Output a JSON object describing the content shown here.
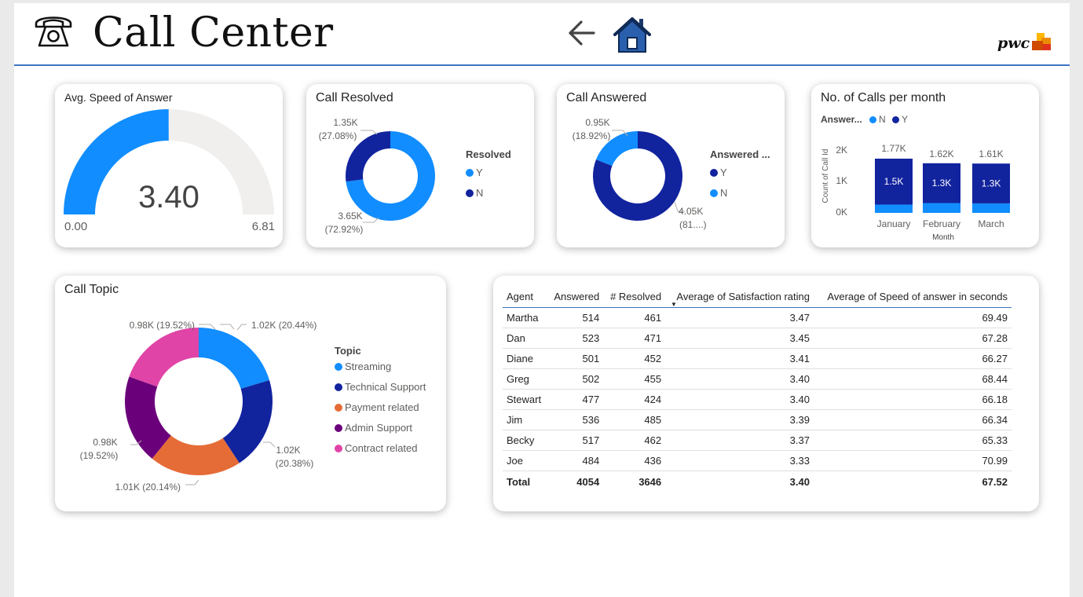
{
  "header": {
    "title": "Call Center",
    "brand": "pwc",
    "phone_icon": "phone-icon",
    "back_icon": "arrow-left-icon",
    "home_icon": "home-icon"
  },
  "colors": {
    "light_blue": "#118dff",
    "dark_blue": "#12239e",
    "orange": "#e66c37",
    "purple": "#6b007b",
    "pink": "#e044a7",
    "gauge_bg": "#f0efee",
    "accent_line": "#3a74c2"
  },
  "gauge": {
    "title": "Avg. Speed of Answer",
    "value_label": "3.40",
    "min_label": "0.00",
    "max_label": "6.81"
  },
  "resolved": {
    "title": "Call Resolved",
    "legend_title": "Resolved",
    "legend": [
      "Y",
      "N"
    ],
    "label_n_value": "1.35K",
    "label_n_pct": "(27.08%)",
    "label_y_value": "3.65K",
    "label_y_pct": "(72.92%)"
  },
  "answered": {
    "title": "Call Answered",
    "legend_title": "Answered ...",
    "legend": [
      "Y",
      "N"
    ],
    "label_n_value": "0.95K",
    "label_n_pct": "(18.92%)",
    "label_y_value": "4.05K",
    "label_y_pct": "(81....)"
  },
  "monthly": {
    "title": "No. of Calls per month",
    "legend_title": "Answer...",
    "legend": [
      "N",
      "Y"
    ],
    "ylabel": "Count of Call Id",
    "xlabel": "Month",
    "yticks": [
      "2K",
      "1K",
      "0K"
    ],
    "months": [
      "January",
      "February",
      "March"
    ],
    "totals": [
      "1.77K",
      "1.62K",
      "1.61K"
    ],
    "inner_labels": [
      "1.5K",
      "1.3K",
      "1.3K"
    ]
  },
  "topic": {
    "title": "Call Topic",
    "legend_title": "Topic",
    "legend": [
      "Streaming",
      "Technical Support",
      "Payment related",
      "Admin Support",
      "Contract related"
    ],
    "labels": [
      "1.02K (20.44%)",
      "1.02K",
      "(20.38%)",
      "1.01K (20.14%)",
      "0.98K",
      "(19.52%)",
      "0.98K (19.52%)"
    ]
  },
  "table": {
    "headers": [
      "Agent",
      "Answered",
      "# Resolved",
      "Average of Satisfaction rating",
      "Average of Speed of answer in seconds"
    ],
    "rows": [
      [
        "Martha",
        "514",
        "461",
        "3.47",
        "69.49"
      ],
      [
        "Dan",
        "523",
        "471",
        "3.45",
        "67.28"
      ],
      [
        "Diane",
        "501",
        "452",
        "3.41",
        "66.27"
      ],
      [
        "Greg",
        "502",
        "455",
        "3.40",
        "68.44"
      ],
      [
        "Stewart",
        "477",
        "424",
        "3.40",
        "66.18"
      ],
      [
        "Jim",
        "536",
        "485",
        "3.39",
        "66.34"
      ],
      [
        "Becky",
        "517",
        "462",
        "3.37",
        "65.33"
      ],
      [
        "Joe",
        "484",
        "436",
        "3.33",
        "70.99"
      ]
    ],
    "total": [
      "Total",
      "4054",
      "3646",
      "3.40",
      "67.52"
    ]
  },
  "chart_data": [
    {
      "type": "gauge",
      "title": "Avg. Speed of Answer",
      "value": 3.4,
      "min": 0.0,
      "max": 6.81
    },
    {
      "type": "pie",
      "title": "Call Resolved",
      "legend_title": "Resolved",
      "categories": [
        "Y",
        "N"
      ],
      "values": [
        3.65,
        1.35
      ],
      "units": "K",
      "percentages": [
        72.92,
        27.08
      ]
    },
    {
      "type": "pie",
      "title": "Call Answered",
      "legend_title": "Answered ...",
      "categories": [
        "Y",
        "N"
      ],
      "values": [
        4.05,
        0.95
      ],
      "units": "K",
      "percentages": [
        81.08,
        18.92
      ]
    },
    {
      "type": "bar",
      "stacked": true,
      "title": "No. of Calls per month",
      "categories": [
        "January",
        "February",
        "March"
      ],
      "series": [
        {
          "name": "Y",
          "values": [
            1.5,
            1.3,
            1.3
          ]
        },
        {
          "name": "N",
          "values": [
            0.27,
            0.32,
            0.31
          ]
        }
      ],
      "totals": [
        1.77,
        1.62,
        1.61
      ],
      "xlabel": "Month",
      "ylabel": "Count of Call Id",
      "ylim": [
        0,
        2
      ],
      "units": "K"
    },
    {
      "type": "pie",
      "title": "Call Topic",
      "legend_title": "Topic",
      "categories": [
        "Streaming",
        "Technical Support",
        "Payment related",
        "Admin Support",
        "Contract related"
      ],
      "values": [
        1.02,
        1.02,
        1.01,
        0.98,
        0.98
      ],
      "units": "K",
      "percentages": [
        20.44,
        20.38,
        20.14,
        19.52,
        19.52
      ]
    },
    {
      "type": "table",
      "columns": [
        "Agent",
        "Answered",
        "# Resolved",
        "Average of Satisfaction rating",
        "Average of Speed of answer in seconds"
      ],
      "rows": [
        [
          "Martha",
          514,
          461,
          3.47,
          69.49
        ],
        [
          "Dan",
          523,
          471,
          3.45,
          67.28
        ],
        [
          "Diane",
          501,
          452,
          3.41,
          66.27
        ],
        [
          "Greg",
          502,
          455,
          3.4,
          68.44
        ],
        [
          "Stewart",
          477,
          424,
          3.4,
          66.18
        ],
        [
          "Jim",
          536,
          485,
          3.39,
          66.34
        ],
        [
          "Becky",
          517,
          462,
          3.37,
          65.33
        ],
        [
          "Joe",
          484,
          436,
          3.33,
          70.99
        ]
      ],
      "total": [
        "Total",
        4054,
        3646,
        3.4,
        67.52
      ]
    }
  ]
}
